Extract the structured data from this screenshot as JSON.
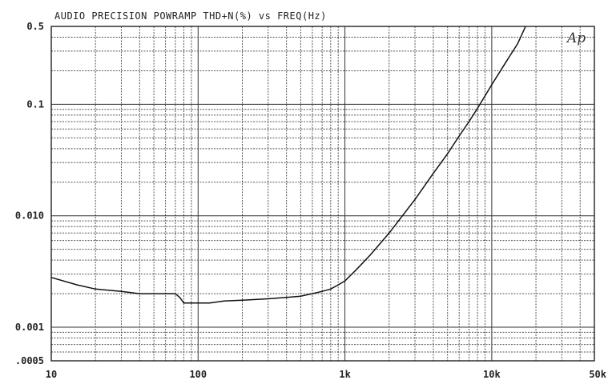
{
  "chart_data": {
    "type": "line",
    "title": "AUDIO PRECISION POWRAMP THD+N(%) vs FREQ(Hz)",
    "logo": "Ap",
    "xscale": "log",
    "yscale": "log",
    "xlim": [
      10,
      50000
    ],
    "ylim": [
      0.0005,
      0.5
    ],
    "grid": true,
    "x_tick_labels": [
      {
        "value": 10,
        "label": "10"
      },
      {
        "value": 100,
        "label": "100"
      },
      {
        "value": 1000,
        "label": "1k"
      },
      {
        "value": 10000,
        "label": "10k"
      },
      {
        "value": 50000,
        "label": "50k"
      }
    ],
    "y_tick_labels": [
      {
        "value": 0.5,
        "label": "0.5"
      },
      {
        "value": 0.1,
        "label": "0.1"
      },
      {
        "value": 0.01,
        "label": "0.010"
      },
      {
        "value": 0.001,
        "label": "0.001"
      },
      {
        "value": 0.0005,
        "label": ".0005"
      }
    ],
    "series": [
      {
        "x": [
          10,
          15,
          20,
          30,
          40,
          50,
          60,
          70,
          75,
          80,
          90,
          100,
          120,
          150,
          200,
          300,
          400,
          500,
          600,
          700,
          800,
          900,
          1000,
          1200,
          1500,
          2000,
          3000,
          4000,
          5000,
          6000,
          7000,
          8000,
          10000,
          12000,
          15000,
          17000
        ],
        "y": [
          0.0028,
          0.0024,
          0.0022,
          0.0021,
          0.002,
          0.002,
          0.002,
          0.002,
          0.00185,
          0.00165,
          0.00165,
          0.00165,
          0.00165,
          0.00172,
          0.00175,
          0.0018,
          0.00185,
          0.0019,
          0.002,
          0.0021,
          0.0022,
          0.0024,
          0.0026,
          0.0033,
          0.0045,
          0.007,
          0.014,
          0.024,
          0.036,
          0.052,
          0.07,
          0.092,
          0.15,
          0.22,
          0.35,
          0.5
        ]
      }
    ]
  }
}
